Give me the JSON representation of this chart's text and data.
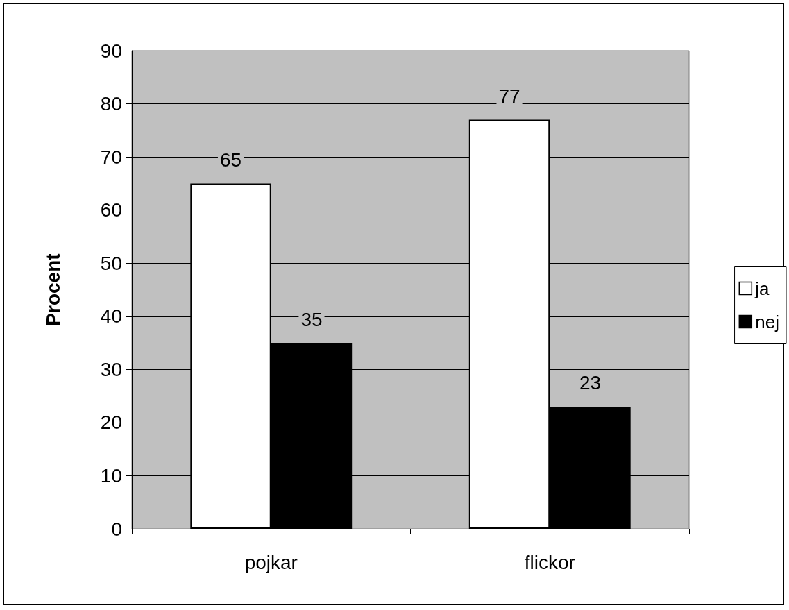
{
  "chart_data": {
    "type": "bar",
    "ylabel": "Procent",
    "categories": [
      "pojkar",
      "flickor"
    ],
    "series": [
      {
        "name": "ja",
        "color": "#ffffff",
        "values": [
          65,
          77
        ]
      },
      {
        "name": "nej",
        "color": "#000000",
        "values": [
          35,
          23
        ]
      }
    ],
    "ylim": [
      0,
      90
    ],
    "yticks": [
      0,
      10,
      20,
      30,
      40,
      50,
      60,
      70,
      80,
      90
    ],
    "grid": "y",
    "legend": "right",
    "data_labels": true
  }
}
